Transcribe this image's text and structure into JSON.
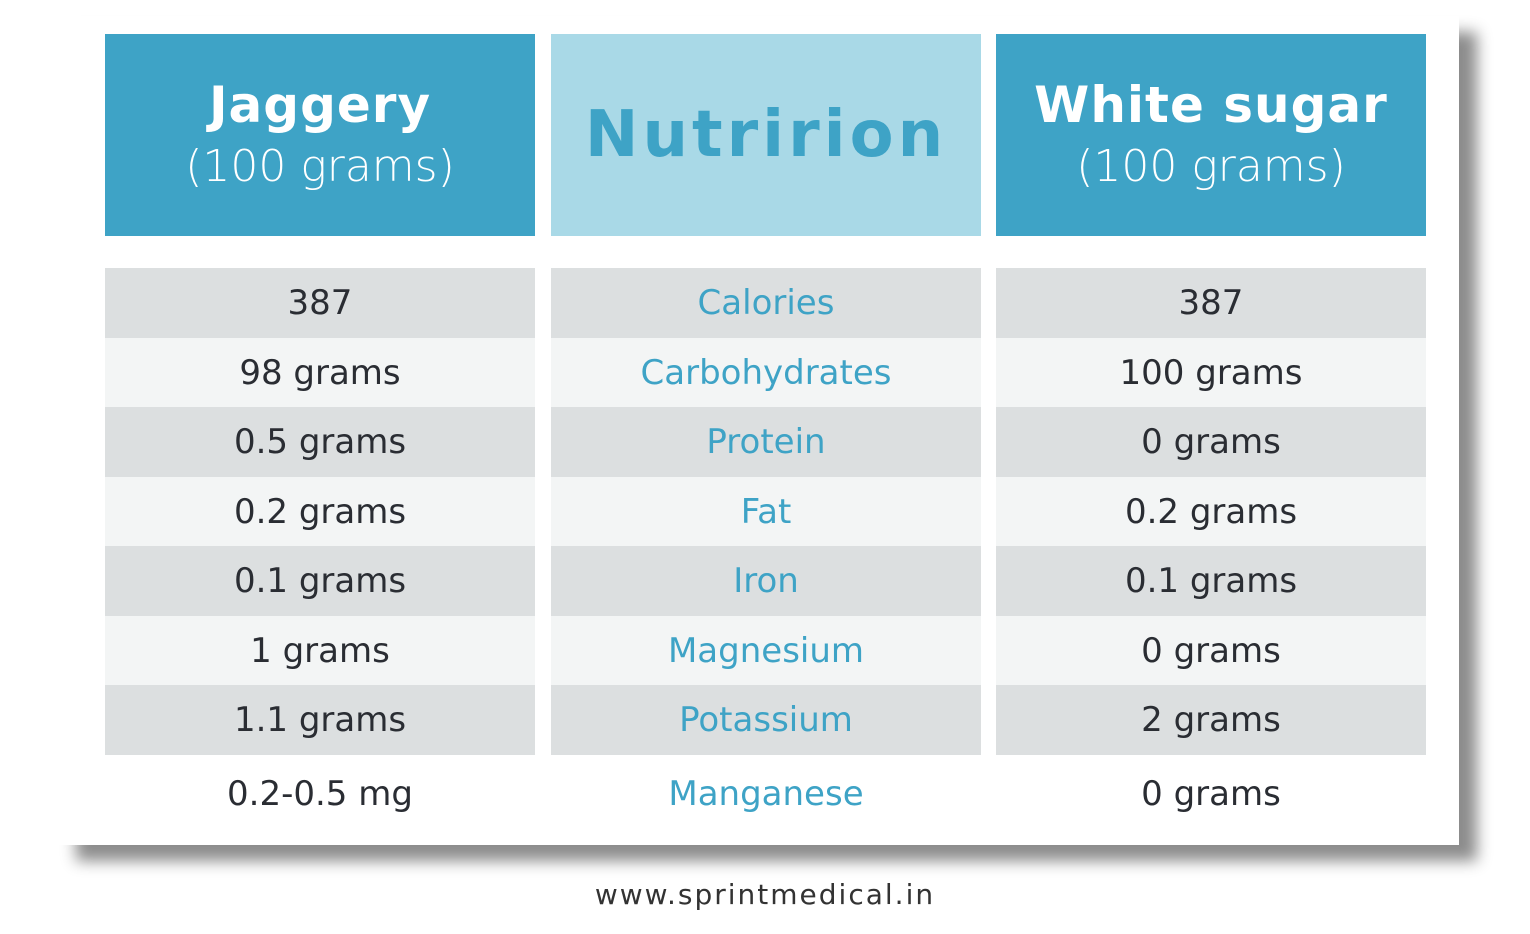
{
  "headers": [
    {
      "title": "Jaggery",
      "subtitle": "(100 grams)"
    },
    {
      "title": "Nutririon",
      "subtitle": ""
    },
    {
      "title": "White sugar",
      "subtitle": "(100 grams)"
    }
  ],
  "rows": [
    {
      "jaggery": "387",
      "nutrient": "Calories",
      "sugar": "387"
    },
    {
      "jaggery": "98 grams",
      "nutrient": "Carbohydrates",
      "sugar": "100 grams"
    },
    {
      "jaggery": "0.5 grams",
      "nutrient": "Protein",
      "sugar": "0 grams"
    },
    {
      "jaggery": "0.2 grams",
      "nutrient": "Fat",
      "sugar": "0.2 grams"
    },
    {
      "jaggery": "0.1 grams",
      "nutrient": "Iron",
      "sugar": "0.1 grams"
    },
    {
      "jaggery": "1 grams",
      "nutrient": "Magnesium",
      "sugar": "0 grams"
    },
    {
      "jaggery": "1.1 grams",
      "nutrient": "Potassium",
      "sugar": "2 grams"
    },
    {
      "jaggery": "0.2-0.5 mg",
      "nutrient": "Manganese",
      "sugar": "0 grams"
    }
  ],
  "footer": "www.sprintmedical.in",
  "colors": {
    "header_dark": "#3ea3c6",
    "header_light": "#a9d9e7",
    "row_dark": "#dcdfe0",
    "row_light": "#f3f5f5",
    "nutrient_text": "#3ea3c6"
  }
}
